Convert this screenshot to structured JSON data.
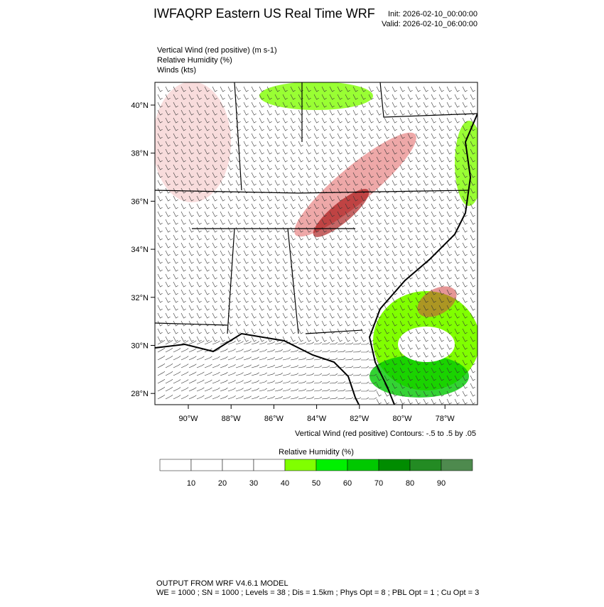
{
  "header": {
    "title": "IWFAQRP Eastern US Real Time WRF",
    "init": "Init: 2026-02-10_00:00:00",
    "valid": "Valid: 2026-02-10_06:00:00"
  },
  "fields": [
    "Vertical Wind (red positive)   (m s-1)",
    "Relative Humidity   (%)",
    "Winds   (kts)"
  ],
  "map": {
    "lat_labels": [
      "40°N",
      "38°N",
      "36°N",
      "34°N",
      "32°N",
      "30°N",
      "28°N"
    ],
    "lon_labels": [
      "90°W",
      "88°W",
      "86°W",
      "84°W",
      "82°W",
      "80°W",
      "78°W"
    ]
  },
  "contour_note": "Vertical Wind (red positive) Contours: -.5 to .5 by .05",
  "colorbar": {
    "title": "Relative Humidity  (%)",
    "labels": [
      10,
      20,
      30,
      40,
      50,
      60,
      70,
      80,
      90
    ],
    "colors": [
      "#ffffff",
      "#ffffff",
      "#ffffff",
      "#ffffff",
      "#80ff00",
      "#00f000",
      "#00c800",
      "#008c00",
      "#238b23",
      "#4e8a4e"
    ]
  },
  "footer": [
    "OUTPUT FROM WRF V4.6.1 MODEL",
    "WE = 1000 ; SN = 1000 ; Levels = 38 ; Dis = 1.5km ; Phys Opt = 8 ; PBL Opt = 1 ; Cu Opt = 3"
  ]
}
